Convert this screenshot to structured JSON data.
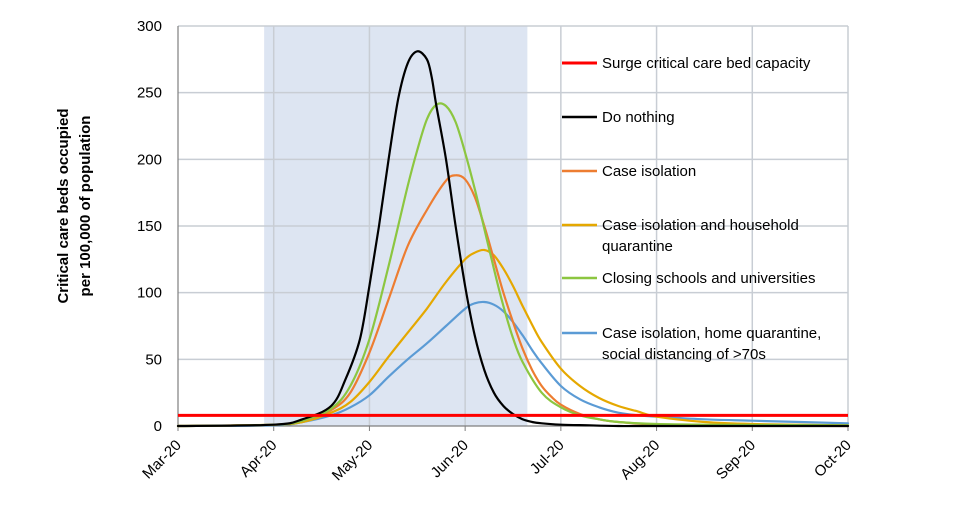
{
  "chart_data": {
    "type": "line",
    "title": "",
    "ylabel_lines": [
      "Critical care beds occupied",
      "per 100,000 of population"
    ],
    "xlabel": "",
    "x_categories": [
      "Mar-20",
      "Apr-20",
      "May-20",
      "Jun-20",
      "Jul-20",
      "Aug-20",
      "Sep-20",
      "Oct-20"
    ],
    "x_range": [
      0,
      7
    ],
    "ylim": [
      0,
      300
    ],
    "yticks": [
      "0",
      "50",
      "100",
      "150",
      "200",
      "250",
      "300"
    ],
    "shaded_interval": [
      0.9,
      3.65
    ],
    "shade_color": "#dde5f2",
    "capacity_line": {
      "name": "Surge critical care bed capacity",
      "value": 8,
      "color": "#ff0000"
    },
    "series": [
      {
        "name": "Do nothing",
        "color": "#000000",
        "x": [
          0,
          1.0,
          1.3,
          1.6,
          1.75,
          1.9,
          2.0,
          2.1,
          2.2,
          2.3,
          2.4,
          2.5,
          2.6,
          2.65,
          2.7,
          2.8,
          2.9,
          3.0,
          3.1,
          3.2,
          3.3,
          3.4,
          3.5,
          3.6,
          3.7,
          3.8,
          4.0,
          4.3,
          4.6,
          5.0,
          7.0
        ],
        "y": [
          0,
          1,
          5,
          15,
          35,
          65,
          105,
          150,
          200,
          245,
          272,
          281,
          275,
          262,
          240,
          200,
          150,
          105,
          68,
          42,
          25,
          15,
          9,
          5,
          3,
          2,
          1,
          0.5,
          0,
          0,
          0
        ]
      },
      {
        "name": "Case isolation",
        "color": "#ed7d31",
        "x": [
          0,
          1.0,
          1.3,
          1.6,
          1.8,
          2.0,
          2.2,
          2.4,
          2.6,
          2.8,
          2.9,
          3.0,
          3.1,
          3.2,
          3.3,
          3.4,
          3.5,
          3.6,
          3.7,
          3.8,
          3.9,
          4.0,
          4.2,
          4.4,
          4.6,
          5.0,
          5.5,
          7.0
        ],
        "y": [
          0,
          1,
          4,
          12,
          25,
          55,
          95,
          135,
          162,
          184,
          188,
          185,
          172,
          150,
          125,
          100,
          78,
          58,
          42,
          30,
          22,
          16,
          9,
          5,
          3,
          1,
          0.5,
          0
        ]
      },
      {
        "name": "Case isolation and household quarantine",
        "color": "#e5a800",
        "x": [
          0,
          1.0,
          1.3,
          1.6,
          1.8,
          2.0,
          2.2,
          2.4,
          2.6,
          2.8,
          3.0,
          3.1,
          3.2,
          3.3,
          3.4,
          3.5,
          3.6,
          3.7,
          3.8,
          4.0,
          4.2,
          4.4,
          4.6,
          4.8,
          5.0,
          5.5,
          6.0,
          6.5,
          7.0
        ],
        "y": [
          0,
          1,
          3,
          10,
          18,
          33,
          52,
          70,
          88,
          108,
          125,
          130,
          132,
          128,
          118,
          105,
          90,
          76,
          63,
          43,
          30,
          21,
          15,
          11,
          7,
          3,
          1.5,
          1,
          0.5
        ]
      },
      {
        "name": "Closing schools and universities",
        "color": "#8cc640",
        "x": [
          0,
          1.0,
          1.3,
          1.6,
          1.8,
          2.0,
          2.2,
          2.4,
          2.5,
          2.6,
          2.7,
          2.8,
          2.9,
          3.0,
          3.1,
          3.2,
          3.3,
          3.4,
          3.5,
          3.6,
          3.8,
          4.0,
          4.2,
          4.4,
          4.6,
          5.0,
          5.5,
          7.0
        ],
        "y": [
          0,
          1,
          4,
          13,
          30,
          65,
          120,
          180,
          207,
          230,
          241,
          240,
          228,
          205,
          178,
          148,
          118,
          90,
          66,
          48,
          25,
          14,
          8,
          5,
          3,
          1.5,
          1,
          0.5
        ]
      },
      {
        "name": "Case isolation, home quarantine, social distancing of >70s",
        "color": "#5b9bd5",
        "x": [
          0,
          1.0,
          1.3,
          1.6,
          1.8,
          2.0,
          2.2,
          2.4,
          2.6,
          2.8,
          3.0,
          3.1,
          3.2,
          3.3,
          3.4,
          3.5,
          3.6,
          3.7,
          3.8,
          4.0,
          4.2,
          4.4,
          4.6,
          4.8,
          5.0,
          5.5,
          6.0,
          6.5,
          7.0
        ],
        "y": [
          0,
          0.5,
          3,
          8,
          14,
          23,
          37,
          50,
          62,
          75,
          88,
          92,
          93,
          91,
          86,
          78,
          68,
          57,
          47,
          30,
          20,
          14,
          10,
          8,
          7,
          5,
          4,
          3,
          2
        ]
      }
    ],
    "legend_order": [
      "Surge critical care bed capacity",
      "Do nothing",
      "Case isolation",
      "Case isolation and household quarantine",
      "Closing schools and universities",
      "Case isolation, home quarantine, social distancing of >70s"
    ],
    "legend_lines": [
      [
        "Surge critical care bed capacity"
      ],
      [
        "Do nothing"
      ],
      [
        "Case isolation"
      ],
      [
        "Case isolation and household",
        "quarantine"
      ],
      [
        "Closing schools and universities"
      ],
      [
        "Case isolation, home quarantine,",
        "social distancing of >70s"
      ]
    ],
    "legend_position": "right"
  }
}
